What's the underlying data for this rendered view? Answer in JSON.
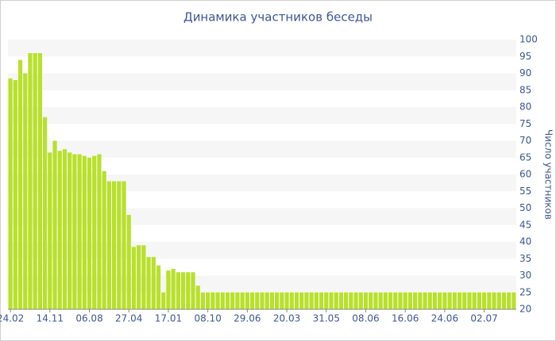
{
  "chart_data": {
    "type": "bar",
    "title": "Динамика участников беседы",
    "y_axis_label": "Число участников",
    "color": "#b8e02c",
    "ylim": [
      20,
      100
    ],
    "yticks": [
      20,
      25,
      30,
      35,
      40,
      45,
      50,
      55,
      60,
      65,
      70,
      75,
      80,
      85,
      90,
      95,
      100
    ],
    "categories": [
      "24.02",
      null,
      null,
      null,
      null,
      null,
      null,
      null,
      "14.11",
      null,
      null,
      null,
      null,
      null,
      null,
      null,
      "06.08",
      null,
      null,
      null,
      null,
      null,
      null,
      null,
      "27.04",
      null,
      null,
      null,
      null,
      null,
      null,
      null,
      "17.01",
      null,
      null,
      null,
      null,
      null,
      null,
      null,
      "08.10",
      null,
      null,
      null,
      null,
      null,
      null,
      null,
      "29.06",
      null,
      null,
      null,
      null,
      null,
      null,
      null,
      "20.03",
      null,
      null,
      null,
      null,
      null,
      null,
      null,
      "31.05",
      null,
      null,
      null,
      null,
      null,
      null,
      null,
      "08.06",
      null,
      null,
      null,
      null,
      null,
      null,
      null,
      "16.06",
      null,
      null,
      null,
      null,
      null,
      null,
      null,
      "24.06",
      null,
      null,
      null,
      null,
      null,
      null,
      null,
      "02.07",
      null,
      null,
      null,
      null,
      null,
      null
    ],
    "values": [
      88.5,
      88,
      94,
      90,
      96,
      96,
      96,
      77,
      66.5,
      70,
      67,
      67.5,
      66.5,
      66,
      66,
      65.5,
      65,
      65.5,
      66,
      61,
      58,
      58,
      58,
      58,
      48,
      38.5,
      39,
      39,
      35.5,
      35.5,
      33,
      25,
      31.5,
      32,
      31,
      31,
      31,
      31,
      27,
      25,
      25,
      25,
      25,
      25,
      25,
      25,
      25,
      25,
      25,
      25,
      25,
      25,
      25,
      25,
      25,
      25,
      25,
      25,
      25,
      25,
      25,
      25,
      25,
      25,
      25,
      25,
      25,
      25,
      25,
      25,
      25,
      25,
      25,
      25,
      25,
      25,
      25,
      25,
      25,
      25,
      25,
      25,
      25,
      25,
      25,
      25,
      25,
      25,
      25,
      25,
      25,
      25,
      25,
      25,
      25,
      25,
      25,
      25,
      25,
      25,
      25,
      25,
      25
    ],
    "stripes": true
  }
}
